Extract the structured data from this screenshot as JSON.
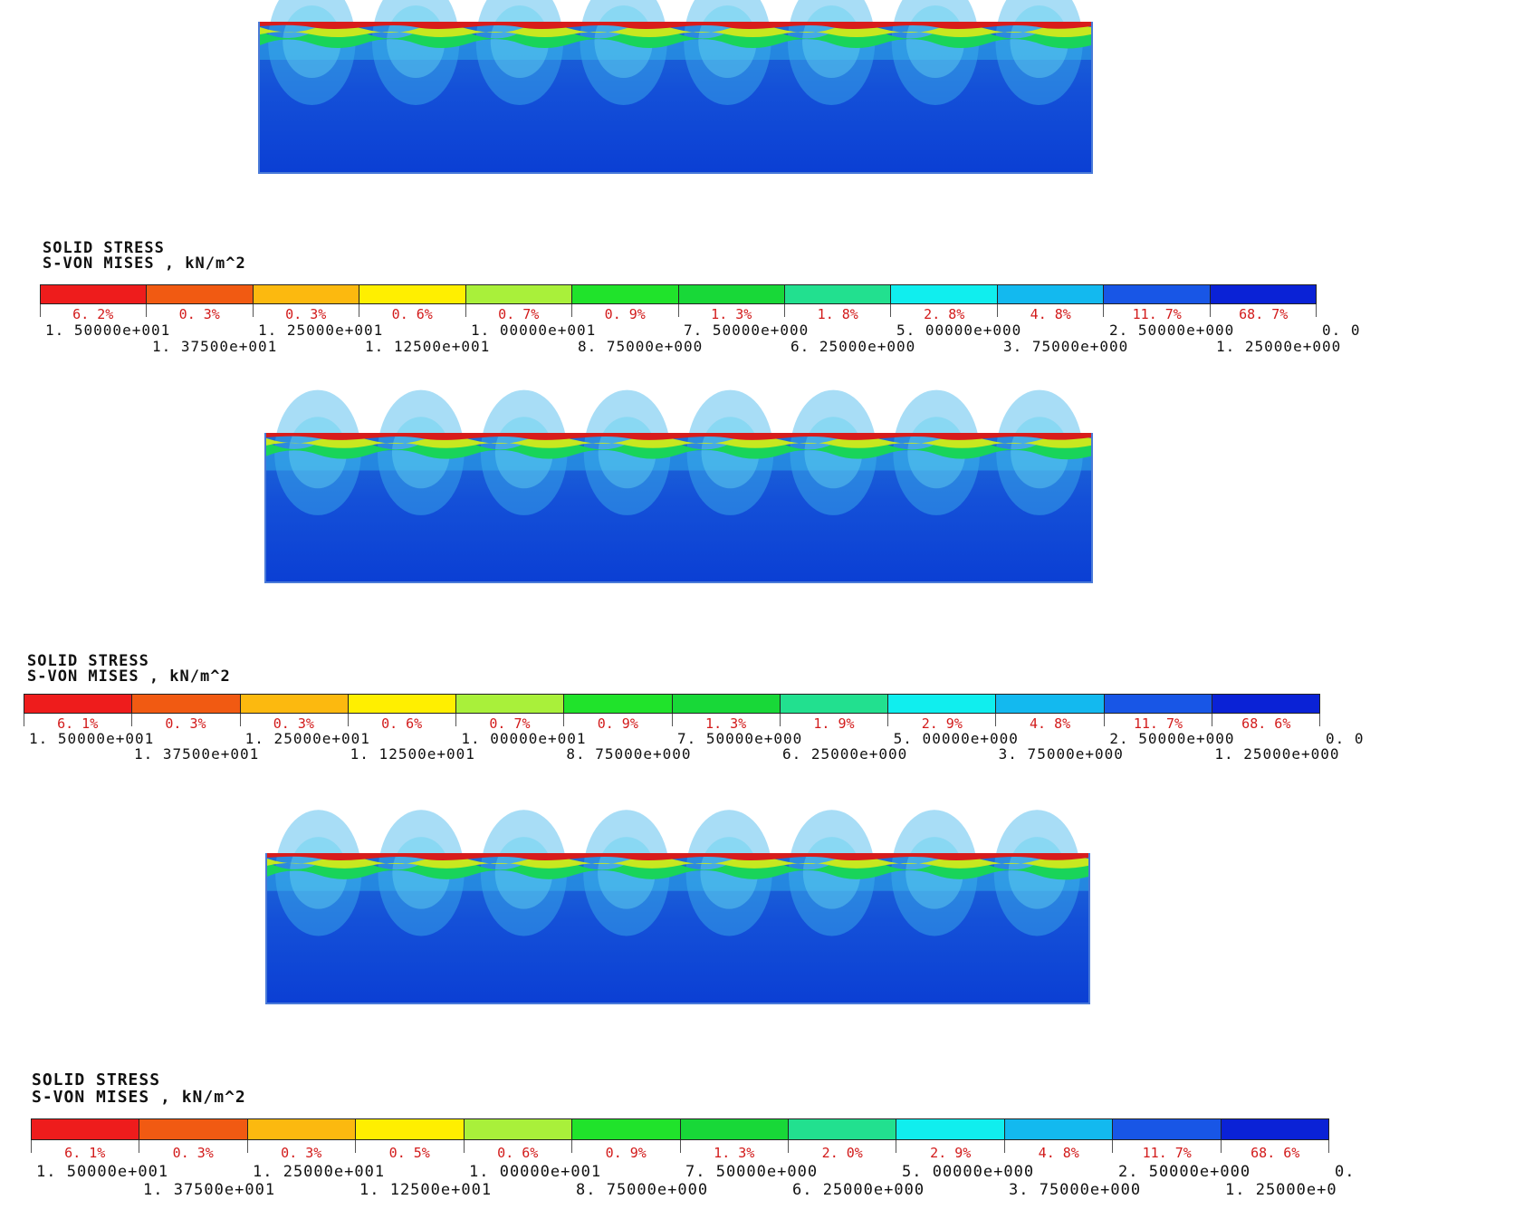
{
  "legend": {
    "title_line1": "SOLID STRESS",
    "title_line2": "S-VON MISES , kN/m^2",
    "colors": [
      "#ee1c1c",
      "#f15a12",
      "#fcb90f",
      "#ffef00",
      "#a9f03a",
      "#20e32b",
      "#18d838",
      "#22e08f",
      "#10eeee",
      "#13b9ef",
      "#1856e6",
      "#0a22d6"
    ]
  },
  "panels": [
    {
      "percentages": [
        "6. 2%",
        "0. 3%",
        "0. 3%",
        "0. 6%",
        "0. 7%",
        "0. 9%",
        "1. 3%",
        "1. 8%",
        "2. 8%",
        "4. 8%",
        "11. 7%",
        "68. 7%"
      ],
      "values_upper": [
        "1. 50000e+001",
        "1. 25000e+001",
        "1. 00000e+001",
        "7. 50000e+000",
        "5. 00000e+000",
        "2. 50000e+000",
        "0. 0"
      ],
      "values_lower": [
        "1. 37500e+001",
        "1. 12500e+001",
        "8. 75000e+000",
        "6. 25000e+000",
        "3. 75000e+000",
        "1. 25000e+000"
      ]
    },
    {
      "percentages": [
        "6. 1%",
        "0. 3%",
        "0. 3%",
        "0. 6%",
        "0. 7%",
        "0. 9%",
        "1. 3%",
        "1. 9%",
        "2. 9%",
        "4. 8%",
        "11. 7%",
        "68. 6%"
      ],
      "values_upper": [
        "1. 50000e+001",
        "1. 25000e+001",
        "1. 00000e+001",
        "7. 50000e+000",
        "5. 00000e+000",
        "2. 50000e+000",
        "0. 0"
      ],
      "values_lower": [
        "1. 37500e+001",
        "1. 12500e+001",
        "8. 75000e+000",
        "6. 25000e+000",
        "3. 75000e+000",
        "1. 25000e+000"
      ]
    },
    {
      "percentages": [
        "6. 1%",
        "0. 3%",
        "0. 3%",
        "0. 5%",
        "0. 6%",
        "0. 9%",
        "1. 3%",
        "2. 0%",
        "2. 9%",
        "4. 8%",
        "11. 7%",
        "68. 6%"
      ],
      "values_upper": [
        "1. 50000e+001",
        "1. 25000e+001",
        "1. 00000e+001",
        "7. 50000e+000",
        "5. 00000e+000",
        "2. 50000e+000",
        "0."
      ],
      "values_lower": [
        "1. 37500e+001",
        "1. 12500e+001",
        "8. 75000e+000",
        "6. 25000e+000",
        "3. 75000e+000",
        "1. 25000e+0"
      ]
    }
  ]
}
